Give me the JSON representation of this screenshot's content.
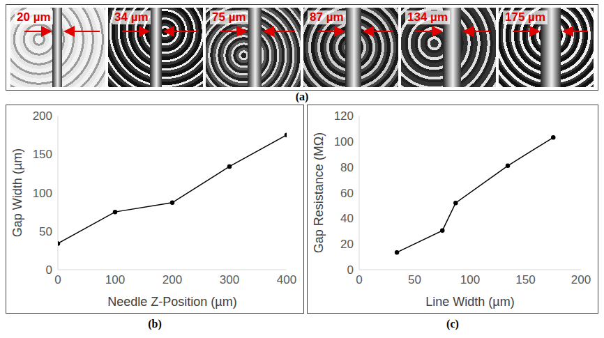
{
  "image_strip": {
    "panel_label": "(a)",
    "gap_labels": [
      "20 µm",
      "34 µm",
      "75 µm",
      "87 µm",
      "134 µm",
      "175 µm"
    ]
  },
  "chart_data": [
    {
      "type": "line",
      "panel_label": "(b)",
      "x_label": "Needle Z-Position (µm)",
      "y_label": "Gap Width (µm)",
      "x": [
        0,
        100,
        200,
        300,
        400
      ],
      "values": [
        34,
        75,
        87,
        134,
        175
      ],
      "color": "#000000",
      "marker": "circle",
      "xlim": [
        0,
        400
      ],
      "xticks": [
        0,
        100,
        200,
        300,
        400
      ],
      "ylim": [
        0,
        200
      ],
      "yticks": [
        0,
        50,
        100,
        150,
        200
      ],
      "grid": false
    },
    {
      "type": "line",
      "panel_label": "(c)",
      "x_label": "Line Width (µm)",
      "y_label": "Gap Resistance (MΩ)",
      "x": [
        34,
        75,
        87,
        134,
        175
      ],
      "values": [
        13.5,
        30.5,
        52,
        81,
        103
      ],
      "color": "#000000",
      "marker": "circle",
      "xlim": [
        0,
        200
      ],
      "xticks": [
        0,
        50,
        100,
        150,
        200
      ],
      "ylim": [
        0,
        120
      ],
      "yticks": [
        0,
        20,
        40,
        60,
        80,
        100,
        120
      ],
      "grid": false
    }
  ]
}
